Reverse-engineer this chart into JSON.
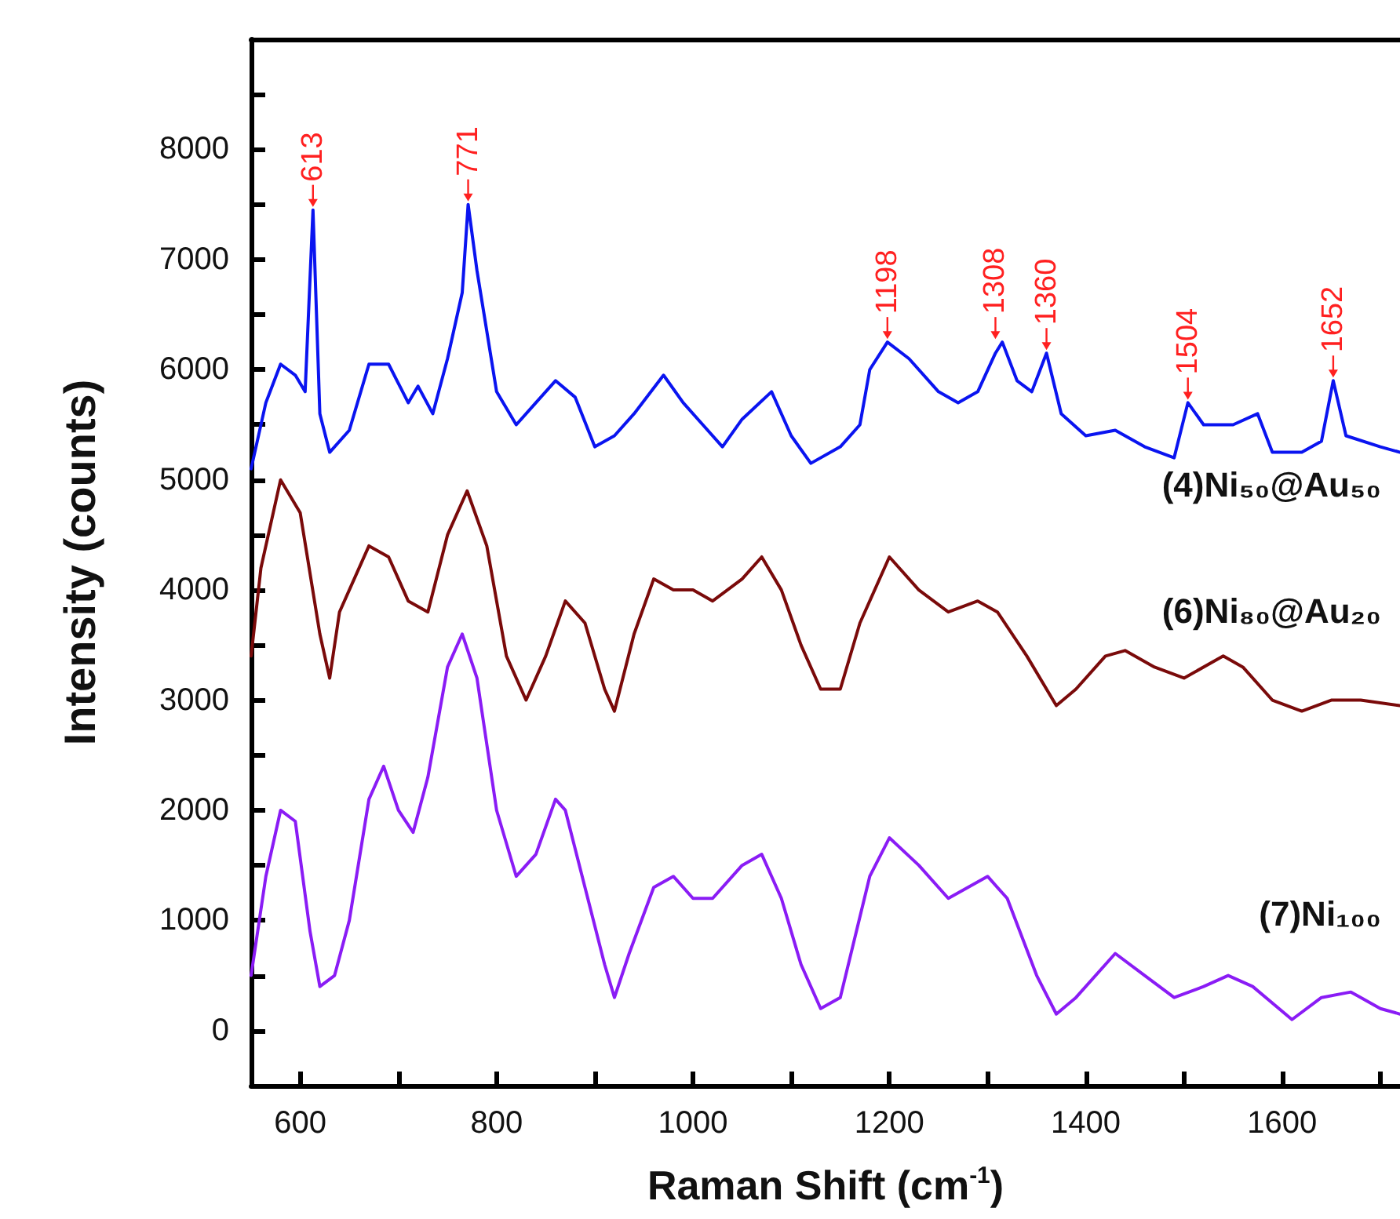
{
  "chart_data": {
    "type": "line",
    "xlabel": "Raman Shift (cm$^{-1}$)",
    "ylabel": "Intensity (counts)",
    "xlim": [
      550,
      1720
    ],
    "ylim": [
      -500,
      9000
    ],
    "xticks": [
      600,
      {
        "value": 700,
        "label": null
      },
      800,
      {
        "value": 900,
        "label": null
      },
      1000,
      {
        "value": 1100,
        "label": null
      },
      1200,
      {
        "value": 1300,
        "label": null
      },
      1400,
      {
        "value": 1500,
        "label": null
      },
      1600,
      {
        "value": 1700,
        "label": null
      }
    ],
    "yticks": [
      {
        "value": -500,
        "label": null
      },
      0,
      {
        "value": 500,
        "label": null
      },
      1000,
      {
        "value": 1500,
        "label": null
      },
      2000,
      {
        "value": 2500,
        "label": null
      },
      3000,
      {
        "value": 3500,
        "label": null
      },
      4000,
      {
        "value": 4500,
        "label": null
      },
      5000,
      {
        "value": 5500,
        "label": null
      },
      6000,
      {
        "value": 6500,
        "label": null
      },
      7000,
      {
        "value": 7500,
        "label": null
      },
      8000,
      {
        "value": 8500,
        "label": null
      }
    ],
    "legend": false,
    "marker": "none",
    "line_style": "solid",
    "series": [
      {
        "name": "(4)Ni₅₀@Au₅₀",
        "color": "#0a14f0",
        "x": [
          550,
          565,
          580,
          595,
          605,
          613,
          620,
          630,
          650,
          670,
          690,
          710,
          720,
          735,
          750,
          765,
          771,
          780,
          800,
          820,
          840,
          860,
          880,
          900,
          920,
          940,
          970,
          990,
          1010,
          1030,
          1050,
          1080,
          1100,
          1120,
          1150,
          1170,
          1180,
          1198,
          1220,
          1250,
          1270,
          1290,
          1308,
          1315,
          1330,
          1345,
          1360,
          1375,
          1400,
          1430,
          1460,
          1490,
          1504,
          1520,
          1550,
          1575,
          1590,
          1620,
          1640,
          1652,
          1665,
          1700,
          1720
        ],
        "values": [
          5100,
          5700,
          6050,
          5950,
          5800,
          7450,
          5600,
          5250,
          5450,
          6050,
          6050,
          5700,
          5850,
          5600,
          6100,
          6700,
          7500,
          6900,
          5800,
          5500,
          5700,
          5900,
          5750,
          5300,
          5400,
          5600,
          5950,
          5700,
          5500,
          5300,
          5550,
          5800,
          5400,
          5150,
          5300,
          5500,
          6000,
          6250,
          6100,
          5800,
          5700,
          5800,
          6150,
          6250,
          5900,
          5800,
          6150,
          5600,
          5400,
          5450,
          5300,
          5200,
          5700,
          5500,
          5500,
          5600,
          5250,
          5250,
          5350,
          5900,
          5400,
          5300,
          5250
        ]
      },
      {
        "name": "(6)Ni₈₀@Au₂₀",
        "color": "#7a0a0a",
        "x": [
          550,
          560,
          580,
          600,
          620,
          630,
          640,
          670,
          690,
          710,
          730,
          750,
          770,
          790,
          810,
          830,
          850,
          870,
          890,
          910,
          920,
          940,
          960,
          980,
          1000,
          1020,
          1050,
          1070,
          1090,
          1110,
          1130,
          1150,
          1170,
          1200,
          1230,
          1260,
          1290,
          1310,
          1340,
          1370,
          1390,
          1420,
          1440,
          1470,
          1500,
          1540,
          1560,
          1590,
          1620,
          1650,
          1680,
          1720
        ],
        "values": [
          3400,
          4200,
          5000,
          4700,
          3600,
          3200,
          3800,
          4400,
          4300,
          3900,
          3800,
          4500,
          4900,
          4400,
          3400,
          3000,
          3400,
          3900,
          3700,
          3100,
          2900,
          3600,
          4100,
          4000,
          4000,
          3900,
          4100,
          4300,
          4000,
          3500,
          3100,
          3100,
          3700,
          4300,
          4000,
          3800,
          3900,
          3800,
          3400,
          2950,
          3100,
          3400,
          3450,
          3300,
          3200,
          3400,
          3300,
          3000,
          2900,
          3000,
          3000,
          2950
        ]
      },
      {
        "name": "(7)Ni₁₀₀",
        "color": "#8a1cf5",
        "x": [
          550,
          565,
          580,
          595,
          610,
          620,
          635,
          650,
          670,
          685,
          700,
          715,
          730,
          750,
          765,
          780,
          800,
          820,
          840,
          860,
          870,
          890,
          910,
          920,
          935,
          960,
          980,
          1000,
          1020,
          1050,
          1070,
          1090,
          1110,
          1130,
          1150,
          1180,
          1200,
          1230,
          1260,
          1300,
          1320,
          1350,
          1370,
          1390,
          1430,
          1460,
          1490,
          1520,
          1545,
          1570,
          1610,
          1640,
          1670,
          1700,
          1720
        ],
        "values": [
          500,
          1400,
          2000,
          1900,
          900,
          400,
          500,
          1000,
          2100,
          2400,
          2000,
          1800,
          2300,
          3300,
          3600,
          3200,
          2000,
          1400,
          1600,
          2100,
          2000,
          1300,
          600,
          300,
          700,
          1300,
          1400,
          1200,
          1200,
          1500,
          1600,
          1200,
          600,
          200,
          300,
          1400,
          1750,
          1500,
          1200,
          1400,
          1200,
          500,
          150,
          300,
          700,
          500,
          300,
          400,
          500,
          400,
          100,
          300,
          350,
          200,
          150
        ]
      }
    ],
    "annotations": [
      {
        "text": "613",
        "x": 613,
        "y": 7450
      },
      {
        "text": "771",
        "x": 771,
        "y": 7500
      },
      {
        "text": "1198",
        "x": 1198,
        "y": 6250
      },
      {
        "text": "1308",
        "x": 1308,
        "y": 6250
      },
      {
        "text": "1360",
        "x": 1360,
        "y": 6150
      },
      {
        "text": "1504",
        "x": 1504,
        "y": 5700
      },
      {
        "text": "1652",
        "x": 1652,
        "y": 5900
      }
    ]
  }
}
